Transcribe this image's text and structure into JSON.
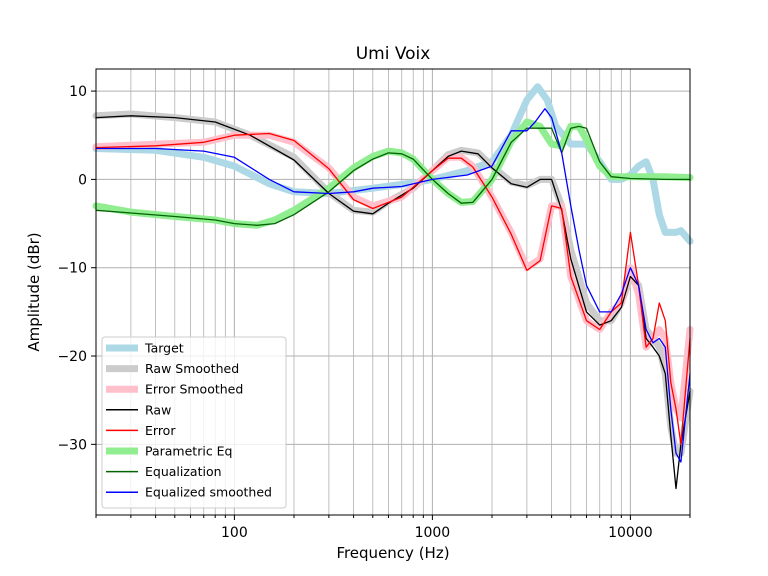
{
  "chart_data": {
    "type": "line",
    "title": "Umi Voix",
    "xlabel": "Frequency (Hz)",
    "ylabel": "Amplitude (dBr)",
    "xscale": "log",
    "xlim": [
      20,
      20000
    ],
    "ylim": [
      -38,
      12.5
    ],
    "x_ticks": [
      100,
      1000,
      10000
    ],
    "x_tick_labels": [
      "100",
      "1000",
      "10000"
    ],
    "y_ticks": [
      -30,
      -20,
      -10,
      0,
      10
    ],
    "y_tick_labels": [
      "−30",
      "−20",
      "−10",
      "0",
      "10"
    ],
    "grid": true,
    "legend_position": "lower-left",
    "series": [
      {
        "name": "Target",
        "color": "#add8e6",
        "thick": true,
        "points": [
          [
            20,
            3.5
          ],
          [
            40,
            3.3
          ],
          [
            70,
            2.5
          ],
          [
            100,
            1.5
          ],
          [
            150,
            -0.5
          ],
          [
            200,
            -1.4
          ],
          [
            300,
            -1.6
          ],
          [
            500,
            -1
          ],
          [
            800,
            -0.4
          ],
          [
            1000,
            0
          ],
          [
            1500,
            1
          ],
          [
            2000,
            2
          ],
          [
            2500,
            5
          ],
          [
            3000,
            9
          ],
          [
            3400,
            10.5
          ],
          [
            3800,
            9
          ],
          [
            4200,
            6
          ],
          [
            5000,
            4
          ],
          [
            6000,
            4
          ],
          [
            7000,
            2
          ],
          [
            8000,
            0
          ],
          [
            9000,
            0
          ],
          [
            10000,
            0.5
          ],
          [
            11000,
            1.5
          ],
          [
            12000,
            2
          ],
          [
            13000,
            0
          ],
          [
            14000,
            -4
          ],
          [
            15000,
            -6
          ],
          [
            16000,
            -6
          ],
          [
            17000,
            -6
          ],
          [
            18000,
            -5.8
          ],
          [
            20000,
            -7
          ]
        ]
      },
      {
        "name": "Raw Smoothed",
        "color": "#cccccc",
        "thick": true,
        "points": [
          [
            20,
            7.2
          ],
          [
            30,
            7.4
          ],
          [
            50,
            7
          ],
          [
            80,
            6.5
          ],
          [
            120,
            5
          ],
          [
            200,
            2.5
          ],
          [
            300,
            -1.5
          ],
          [
            400,
            -3.5
          ],
          [
            500,
            -3.7
          ],
          [
            600,
            -2.5
          ],
          [
            800,
            -1
          ],
          [
            1000,
            1
          ],
          [
            1200,
            2.8
          ],
          [
            1400,
            3.3
          ],
          [
            1700,
            3
          ],
          [
            2000,
            1.5
          ],
          [
            2500,
            -0.3
          ],
          [
            3000,
            -0.7
          ],
          [
            3500,
            0
          ],
          [
            4000,
            0
          ],
          [
            4500,
            -3
          ],
          [
            5000,
            -8
          ],
          [
            6000,
            -14
          ],
          [
            7000,
            -16
          ],
          [
            8000,
            -16
          ],
          [
            9000,
            -14
          ],
          [
            10000,
            -11
          ],
          [
            11000,
            -12
          ],
          [
            12000,
            -17
          ],
          [
            13000,
            -18
          ],
          [
            14000,
            -19
          ],
          [
            15000,
            -22
          ],
          [
            16000,
            -28
          ],
          [
            17000,
            -31
          ],
          [
            18000,
            -31
          ],
          [
            20000,
            -24
          ]
        ]
      },
      {
        "name": "Error Smoothed",
        "color": "#ffc0cb",
        "thick": true,
        "points": [
          [
            20,
            3.7
          ],
          [
            40,
            4
          ],
          [
            70,
            4.2
          ],
          [
            100,
            5
          ],
          [
            150,
            5
          ],
          [
            200,
            4.2
          ],
          [
            300,
            1.3
          ],
          [
            400,
            -2
          ],
          [
            500,
            -3
          ],
          [
            700,
            -2
          ],
          [
            1000,
            1
          ],
          [
            1200,
            2.5
          ],
          [
            1400,
            2.5
          ],
          [
            1600,
            1.5
          ],
          [
            2000,
            -2
          ],
          [
            2500,
            -6
          ],
          [
            3000,
            -10
          ],
          [
            3500,
            -9
          ],
          [
            4000,
            -3
          ],
          [
            4500,
            -3
          ],
          [
            5000,
            -11
          ],
          [
            6000,
            -16
          ],
          [
            7000,
            -17
          ],
          [
            8000,
            -15
          ],
          [
            9000,
            -14
          ],
          [
            10000,
            -10
          ],
          [
            11000,
            -13
          ],
          [
            12000,
            -19
          ],
          [
            13000,
            -18
          ],
          [
            14000,
            -17
          ],
          [
            15000,
            -18
          ],
          [
            16000,
            -23
          ],
          [
            17000,
            -26
          ],
          [
            18000,
            -27
          ],
          [
            20000,
            -17
          ]
        ]
      },
      {
        "name": "Raw",
        "color": "#000000",
        "thick": false,
        "points": [
          [
            20,
            7
          ],
          [
            30,
            7.2
          ],
          [
            50,
            7
          ],
          [
            80,
            6.5
          ],
          [
            120,
            5
          ],
          [
            200,
            2.2
          ],
          [
            300,
            -1.6
          ],
          [
            400,
            -3.6
          ],
          [
            500,
            -3.9
          ],
          [
            600,
            -2.7
          ],
          [
            800,
            -1
          ],
          [
            1000,
            1
          ],
          [
            1200,
            2.6
          ],
          [
            1400,
            3.2
          ],
          [
            1700,
            2.9
          ],
          [
            2000,
            1.3
          ],
          [
            2500,
            -0.5
          ],
          [
            3000,
            -0.9
          ],
          [
            3500,
            0
          ],
          [
            4000,
            0
          ],
          [
            4500,
            -3.5
          ],
          [
            5000,
            -9
          ],
          [
            6000,
            -15
          ],
          [
            7000,
            -16.5
          ],
          [
            8000,
            -16
          ],
          [
            9000,
            -14.5
          ],
          [
            10000,
            -11
          ],
          [
            11000,
            -12
          ],
          [
            12000,
            -18
          ],
          [
            13000,
            -19
          ],
          [
            14000,
            -20
          ],
          [
            15000,
            -22
          ],
          [
            16000,
            -29
          ],
          [
            17000,
            -35
          ],
          [
            18000,
            -30
          ],
          [
            20000,
            -24
          ]
        ]
      },
      {
        "name": "Error",
        "color": "#ff0000",
        "thick": false,
        "points": [
          [
            20,
            3.6
          ],
          [
            40,
            3.8
          ],
          [
            70,
            4.2
          ],
          [
            100,
            5
          ],
          [
            150,
            5.2
          ],
          [
            200,
            4.4
          ],
          [
            300,
            1.2
          ],
          [
            400,
            -2.3
          ],
          [
            500,
            -3.3
          ],
          [
            700,
            -2
          ],
          [
            1000,
            1
          ],
          [
            1200,
            2.4
          ],
          [
            1400,
            2.4
          ],
          [
            1600,
            1.4
          ],
          [
            2000,
            -2
          ],
          [
            2500,
            -6.2
          ],
          [
            3000,
            -10.3
          ],
          [
            3500,
            -9.2
          ],
          [
            4000,
            -3
          ],
          [
            4500,
            -3.3
          ],
          [
            5000,
            -11
          ],
          [
            6000,
            -16
          ],
          [
            7000,
            -17
          ],
          [
            8000,
            -15
          ],
          [
            9000,
            -14
          ],
          [
            10000,
            -6
          ],
          [
            11000,
            -12
          ],
          [
            12000,
            -19
          ],
          [
            13000,
            -18
          ],
          [
            14000,
            -14
          ],
          [
            15000,
            -16
          ],
          [
            16000,
            -23
          ],
          [
            17000,
            -26
          ],
          [
            18000,
            -30
          ],
          [
            20000,
            -18
          ]
        ]
      },
      {
        "name": "Parametric Eq",
        "color": "#90ee90",
        "thick": true,
        "points": [
          [
            20,
            -3
          ],
          [
            30,
            -3.7
          ],
          [
            50,
            -4.2
          ],
          [
            80,
            -4.6
          ],
          [
            100,
            -5
          ],
          [
            130,
            -5.2
          ],
          [
            160,
            -4.6
          ],
          [
            200,
            -3.5
          ],
          [
            300,
            -1
          ],
          [
            400,
            1.3
          ],
          [
            500,
            2.6
          ],
          [
            600,
            3.2
          ],
          [
            700,
            3
          ],
          [
            800,
            2.3
          ],
          [
            1000,
            0
          ],
          [
            1200,
            -1.6
          ],
          [
            1400,
            -2.6
          ],
          [
            1600,
            -2.5
          ],
          [
            2000,
            0
          ],
          [
            2500,
            4.3
          ],
          [
            3000,
            6.5
          ],
          [
            3500,
            6
          ],
          [
            4000,
            4
          ],
          [
            4500,
            3.8
          ],
          [
            5000,
            6
          ],
          [
            5500,
            6
          ],
          [
            6000,
            4.5
          ],
          [
            7000,
            1.5
          ],
          [
            8000,
            0.3
          ],
          [
            10000,
            0.3
          ],
          [
            15000,
            0.3
          ],
          [
            20000,
            0.2
          ]
        ]
      },
      {
        "name": "Equalization",
        "color": "#006400",
        "thick": false,
        "points": [
          [
            20,
            -3.5
          ],
          [
            30,
            -3.8
          ],
          [
            50,
            -4.2
          ],
          [
            80,
            -4.6
          ],
          [
            100,
            -5
          ],
          [
            130,
            -5.2
          ],
          [
            160,
            -5
          ],
          [
            200,
            -4
          ],
          [
            300,
            -1.4
          ],
          [
            400,
            1
          ],
          [
            500,
            2.3
          ],
          [
            600,
            3
          ],
          [
            700,
            2.9
          ],
          [
            800,
            2.3
          ],
          [
            1000,
            0
          ],
          [
            1200,
            -1.6
          ],
          [
            1400,
            -2.7
          ],
          [
            1600,
            -2.6
          ],
          [
            2000,
            0
          ],
          [
            2500,
            4.2
          ],
          [
            3000,
            5.8
          ],
          [
            3500,
            5.8
          ],
          [
            4000,
            5.8
          ],
          [
            4500,
            3
          ],
          [
            5000,
            5.8
          ],
          [
            5500,
            6
          ],
          [
            6000,
            5.8
          ],
          [
            7000,
            2
          ],
          [
            8000,
            0.3
          ],
          [
            10000,
            0.1
          ],
          [
            15000,
            0
          ],
          [
            20000,
            0
          ]
        ]
      },
      {
        "name": "Equalized smoothed",
        "color": "#0000ff",
        "thick": false,
        "points": [
          [
            20,
            3.5
          ],
          [
            40,
            3.5
          ],
          [
            70,
            3.2
          ],
          [
            100,
            2.5
          ],
          [
            150,
            0
          ],
          [
            200,
            -1.4
          ],
          [
            300,
            -1.6
          ],
          [
            400,
            -1.4
          ],
          [
            500,
            -1
          ],
          [
            700,
            -0.8
          ],
          [
            1000,
            0
          ],
          [
            1500,
            0.5
          ],
          [
            2000,
            1.5
          ],
          [
            2500,
            5.5
          ],
          [
            3000,
            5.5
          ],
          [
            3300,
            6.5
          ],
          [
            3700,
            8
          ],
          [
            4000,
            7
          ],
          [
            4500,
            3
          ],
          [
            5000,
            -3
          ],
          [
            5500,
            -8
          ],
          [
            6000,
            -12
          ],
          [
            7000,
            -15
          ],
          [
            8000,
            -15
          ],
          [
            9000,
            -13
          ],
          [
            10000,
            -10
          ],
          [
            11000,
            -12
          ],
          [
            12000,
            -17
          ],
          [
            13000,
            -18.5
          ],
          [
            14000,
            -18
          ],
          [
            15000,
            -19
          ],
          [
            16000,
            -26
          ],
          [
            17000,
            -31
          ],
          [
            18000,
            -32
          ],
          [
            20000,
            -22
          ]
        ]
      }
    ]
  }
}
